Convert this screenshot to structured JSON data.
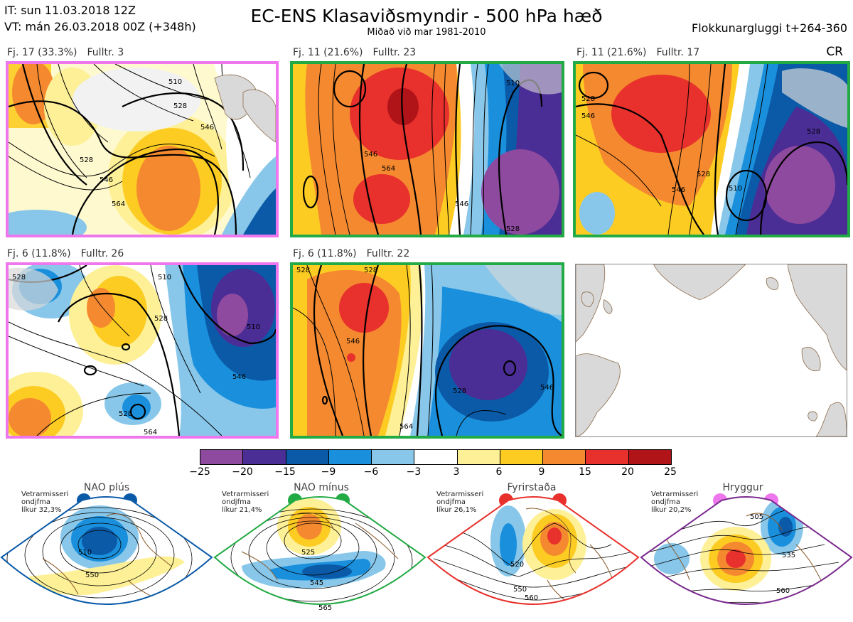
{
  "header": {
    "it": "IT: sun 11.03.2018 12Z",
    "vt": "VT: mán 26.03.2018 00Z  (+348h)",
    "title": "EC-ENS Klasaviðsmyndir - 500 hPa hæð",
    "subtitle": "Miðað við mar 1981-2010",
    "window": "Flokkunargluggi t+264-360",
    "cr": "CR"
  },
  "panels": [
    {
      "fj": "Fj. 17 (33.3%)",
      "fulltr": "Fulltr. 3",
      "border": "#ee77ee",
      "contours": [
        "510",
        "528",
        "546",
        "528",
        "546",
        "564"
      ]
    },
    {
      "fj": "Fj. 11 (21.6%)",
      "fulltr": "Fulltr. 23",
      "border": "#22aa44",
      "contours": [
        "546",
        "564",
        "546",
        "528",
        "510"
      ]
    },
    {
      "fj": "Fj. 11 (21.6%)",
      "fulltr": "Fulltr. 17",
      "border": "#22aa44",
      "contours": [
        "528",
        "546",
        "546",
        "528",
        "510",
        "528"
      ]
    },
    {
      "fj": "Fj. 6 (11.8%)",
      "fulltr": "Fulltr. 26",
      "border": "#ee77ee",
      "contours": [
        "528",
        "510",
        "528",
        "546",
        "510",
        "528",
        "564"
      ]
    },
    {
      "fj": "Fj. 6 (11.8%)",
      "fulltr": "Fulltr. 22",
      "border": "#22aa44",
      "contours": [
        "528",
        "528",
        "546",
        "528",
        "546",
        "564"
      ]
    }
  ],
  "colorbar": {
    "ticks": [
      "−25",
      "−20",
      "−15",
      "−9",
      "−6",
      "−3",
      "3",
      "6",
      "9",
      "15",
      "20",
      "25"
    ],
    "colors": [
      "#8e4a9e",
      "#4b2d96",
      "#0b5aa8",
      "#1a90dd",
      "#88c7ea",
      "#ffffff",
      "#fdf096",
      "#fdcc22",
      "#f5892f",
      "#e8302c",
      "#b01418"
    ]
  },
  "regimes": [
    {
      "name": "NAO plús",
      "note": [
        "Vetrarmisseri",
        "ondjfma",
        "líkur 32,3%"
      ],
      "color": "#0a5aa8",
      "contours": [
        "510",
        "550"
      ]
    },
    {
      "name": "NAO mínus",
      "note": [
        "Vetrarmisseri",
        "ondjfma",
        "líkur 21,4%"
      ],
      "color": "#22aa44",
      "contours": [
        "525",
        "545",
        "565"
      ]
    },
    {
      "name": "Fyrirstaða",
      "note": [
        "Vetrarmisseri",
        "ondjfma",
        "líkur 26,1%"
      ],
      "color": "#e8302c",
      "contours": [
        "520",
        "550",
        "560"
      ]
    },
    {
      "name": "Hryggur",
      "note": [
        "Vetrarmisseri",
        "ondjfma",
        "líkur 20,2%"
      ],
      "color": "#ee77ee",
      "contours": [
        "505",
        "535",
        "560"
      ]
    }
  ]
}
